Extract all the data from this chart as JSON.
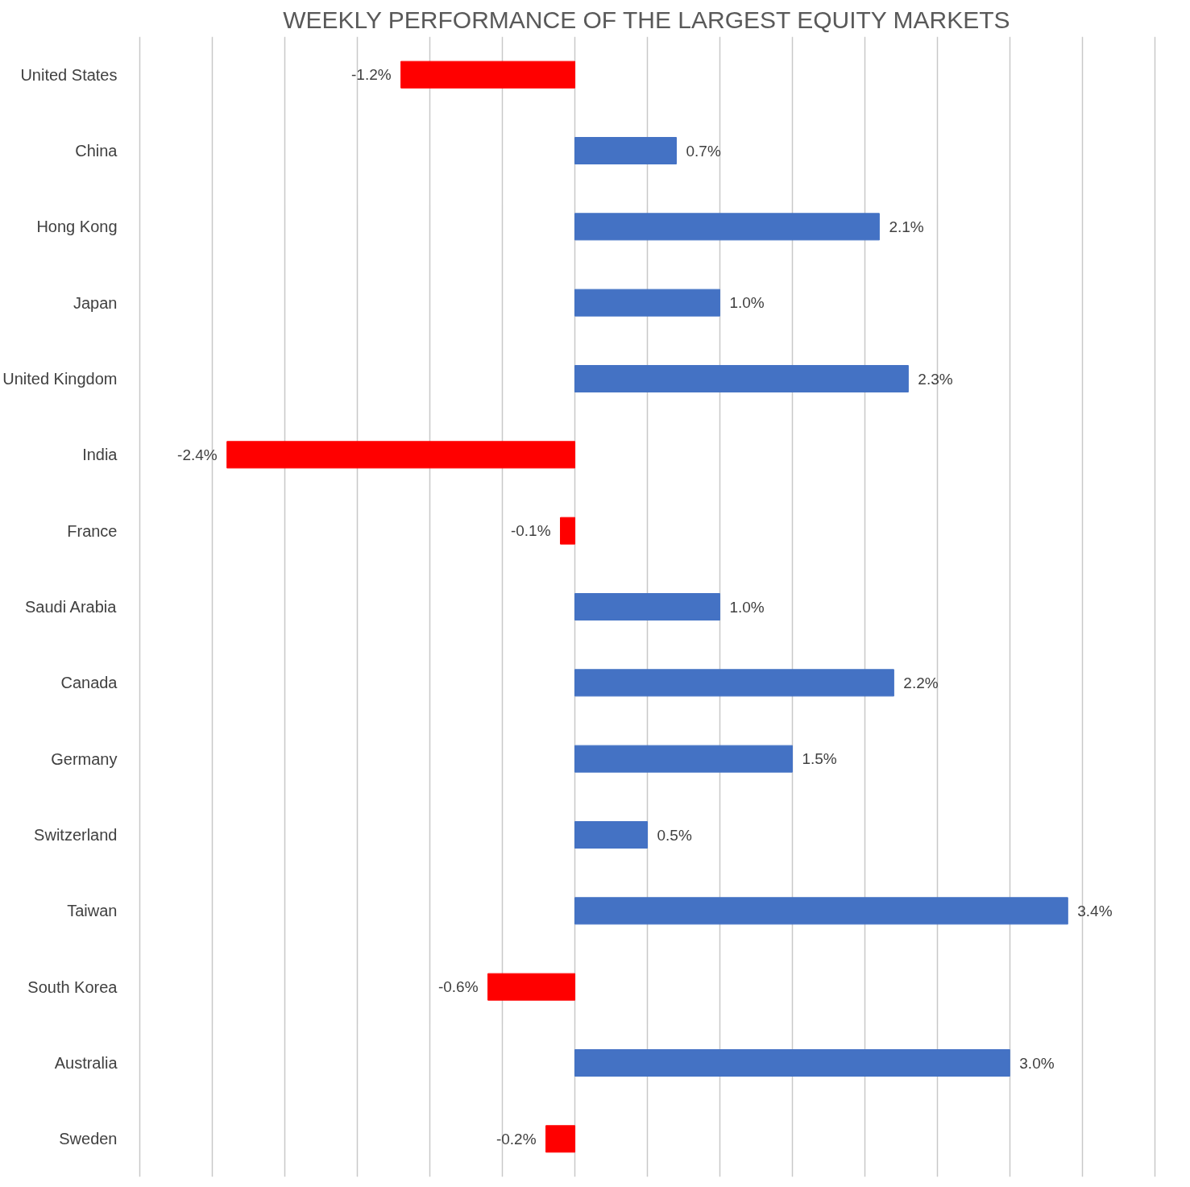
{
  "chart_data": {
    "type": "bar",
    "orientation": "horizontal",
    "title": "WEEKLY PERFORMANCE OF THE LARGEST EQUITY MARKETS",
    "categories": [
      "United States",
      "China",
      "Hong Kong",
      "Japan",
      "United Kingdom",
      "India",
      "France",
      "Saudi Arabia",
      "Canada",
      "Germany",
      "Switzerland",
      "Taiwan",
      "South Korea",
      "Australia",
      "Sweden"
    ],
    "values": [
      -1.2,
      0.7,
      2.1,
      1.0,
      2.3,
      -2.4,
      -0.1,
      1.0,
      2.2,
      1.5,
      0.5,
      3.4,
      -0.6,
      3.0,
      -0.2
    ],
    "colors": [
      "#ff0000",
      "#4472c4",
      "#4472c4",
      "#4472c4",
      "#4472c4",
      "#ff0000",
      "#ff0000",
      "#4472c4",
      "#4472c4",
      "#4472c4",
      "#4472c4",
      "#4472c4",
      "#ff0000",
      "#4472c4",
      "#ff0000"
    ],
    "value_labels": [
      "-1.2%",
      "0.7%",
      "2.1%",
      "1.0%",
      "2.3%",
      "-2.4%",
      "-0.1%",
      "1.0%",
      "2.2%",
      "1.5%",
      "0.5%",
      "3.4%",
      "-0.6%",
      "3.0%",
      "-0.2%"
    ],
    "tick_labels": "y",
    "grid": "x"
  }
}
